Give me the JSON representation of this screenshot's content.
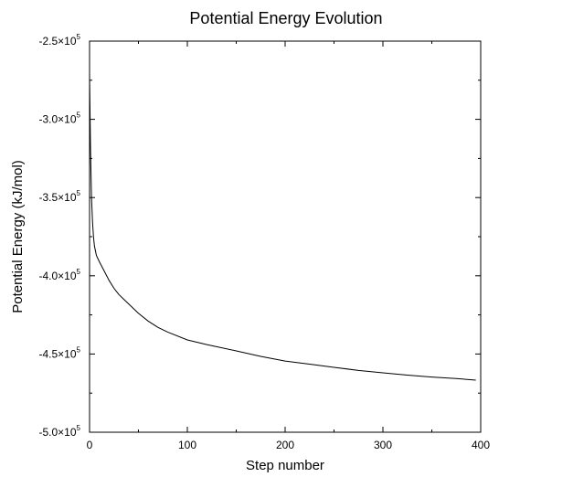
{
  "chart_data": {
    "type": "line",
    "title": "Potential Energy Evolution",
    "xlabel": "Step number",
    "ylabel": "Potential Energy (kJ/mol)",
    "xlim": [
      0,
      400
    ],
    "ylim": [
      -500000,
      -250000
    ],
    "x_ticks": [
      0,
      100,
      200,
      300,
      400
    ],
    "x_tick_labels": [
      "0",
      "100",
      "200",
      "300",
      "400"
    ],
    "y_ticks": [
      -250000,
      -300000,
      -350000,
      -400000,
      -450000,
      -500000
    ],
    "y_tick_labels": [
      {
        "mantissa": "-2.5×10",
        "exponent": "5"
      },
      {
        "mantissa": "-3.0×10",
        "exponent": "5"
      },
      {
        "mantissa": "-3.5×10",
        "exponent": "5"
      },
      {
        "mantissa": "-4.0×10",
        "exponent": "5"
      },
      {
        "mantissa": "-4.5×10",
        "exponent": "5"
      },
      {
        "mantissa": "-5.0×10",
        "exponent": "5"
      }
    ],
    "grid": false,
    "color": "#000000",
    "series": [
      {
        "x": [
          0,
          1,
          2,
          3,
          4,
          5,
          7,
          10,
          15,
          20,
          25,
          30,
          35,
          40,
          50,
          60,
          70,
          80,
          100,
          120,
          150,
          175,
          200,
          225,
          250,
          275,
          300,
          325,
          350,
          375,
          395
        ],
        "y": [
          -272000,
          -320000,
          -350000,
          -365000,
          -375000,
          -381000,
          -387000,
          -391000,
          -397000,
          -403000,
          -408000,
          -412000,
          -415000,
          -418000,
          -424000,
          -429000,
          -433000,
          -436000,
          -441000,
          -444000,
          -448000,
          -451500,
          -454500,
          -456500,
          -458500,
          -460500,
          -462000,
          -463500,
          -464700,
          -465700,
          -466700
        ]
      }
    ]
  }
}
